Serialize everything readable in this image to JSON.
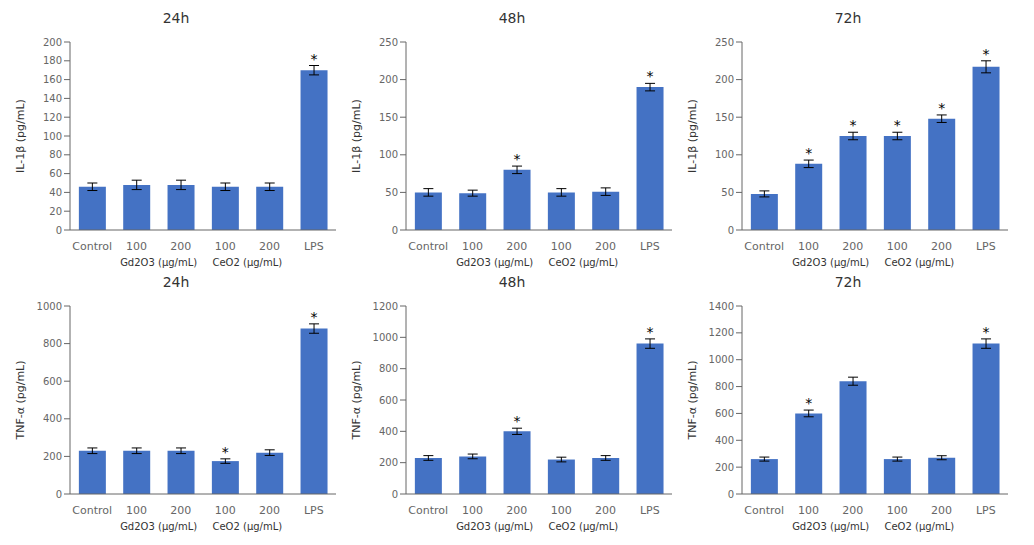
{
  "chart_data": [
    {
      "type": "bar",
      "title": "24h",
      "y_label": "IL-1β (pg/mL)",
      "categories": [
        "Control",
        "100",
        "200",
        "100",
        "200",
        "LPS"
      ],
      "values": [
        46,
        48,
        48,
        46,
        46,
        170
      ],
      "errors": [
        4,
        5,
        5,
        4,
        4,
        5
      ],
      "sig_labels": [
        null,
        null,
        null,
        null,
        null,
        "*"
      ],
      "category_groups": [
        {
          "label": "Gd2O3 (μg/mL)",
          "from": 1,
          "to": 2
        },
        {
          "label": "CeO2 (μg/mL)",
          "from": 3,
          "to": 4
        }
      ],
      "color": "#4472C4",
      "ylim": [
        0,
        200
      ],
      "yticks": [
        0,
        20,
        40,
        60,
        80,
        100,
        120,
        140,
        160,
        180,
        200
      ],
      "grid": false
    },
    {
      "type": "bar",
      "title": "48h",
      "y_label": "IL-1β (pg/mL)",
      "categories": [
        "Control",
        "100",
        "200",
        "100",
        "200",
        "LPS"
      ],
      "values": [
        50,
        49,
        80,
        50,
        51,
        190
      ],
      "errors": [
        5,
        4,
        5,
        5,
        5,
        5
      ],
      "sig_labels": [
        null,
        null,
        "*",
        null,
        null,
        "*"
      ],
      "category_groups": [
        {
          "label": "Gd2O3 (μg/mL)",
          "from": 1,
          "to": 2
        },
        {
          "label": "CeO2 (μg/mL)",
          "from": 3,
          "to": 4
        }
      ],
      "color": "#4472C4",
      "ylim": [
        0,
        250
      ],
      "yticks": [
        0,
        50,
        100,
        150,
        200,
        250
      ],
      "grid": false
    },
    {
      "type": "bar",
      "title": "72h",
      "y_label": "IL-1β (pg/mL)",
      "categories": [
        "Control",
        "100",
        "200",
        "100",
        "200",
        "LPS"
      ],
      "values": [
        48,
        88,
        125,
        125,
        148,
        217
      ],
      "errors": [
        4,
        5,
        5,
        5,
        5,
        8
      ],
      "sig_labels": [
        null,
        "*",
        "*",
        "*",
        "*",
        "*"
      ],
      "category_groups": [
        {
          "label": "Gd2O3 (μg/mL)",
          "from": 1,
          "to": 2
        },
        {
          "label": "CeO2 (μg/mL)",
          "from": 3,
          "to": 4
        }
      ],
      "color": "#4472C4",
      "ylim": [
        0,
        250
      ],
      "yticks": [
        0,
        50,
        100,
        150,
        200,
        250
      ],
      "grid": false
    },
    {
      "type": "bar",
      "title": "24h",
      "y_label": "TNF-α (pg/mL)",
      "categories": [
        "Control",
        "100",
        "200",
        "100",
        "200",
        "LPS"
      ],
      "values": [
        230,
        230,
        230,
        175,
        220,
        880
      ],
      "errors": [
        15,
        15,
        15,
        12,
        15,
        25
      ],
      "sig_labels": [
        null,
        null,
        null,
        "*",
        null,
        "*"
      ],
      "category_groups": [
        {
          "label": "Gd2O3 (μg/mL)",
          "from": 1,
          "to": 2
        },
        {
          "label": "CeO2 (μg/mL)",
          "from": 3,
          "to": 4
        }
      ],
      "color": "#4472C4",
      "ylim": [
        0,
        1000
      ],
      "yticks": [
        0,
        200,
        400,
        600,
        800,
        1000
      ],
      "grid": false
    },
    {
      "type": "bar",
      "title": "48h",
      "y_label": "TNF-α (pg/mL)",
      "categories": [
        "Control",
        "100",
        "200",
        "100",
        "200",
        "LPS"
      ],
      "values": [
        230,
        240,
        400,
        220,
        230,
        960
      ],
      "errors": [
        15,
        15,
        20,
        15,
        15,
        30
      ],
      "sig_labels": [
        null,
        null,
        "*",
        null,
        null,
        "*"
      ],
      "category_groups": [
        {
          "label": "Gd2O3 (μg/mL)",
          "from": 1,
          "to": 2
        },
        {
          "label": "CeO2 (μg/mL)",
          "from": 3,
          "to": 4
        }
      ],
      "color": "#4472C4",
      "ylim": [
        0,
        1200
      ],
      "yticks": [
        0,
        200,
        400,
        600,
        800,
        1000,
        1200
      ],
      "grid": false
    },
    {
      "type": "bar",
      "title": "72h",
      "y_label": "TNF-α (pg/mL)",
      "categories": [
        "Control",
        "100",
        "200",
        "100",
        "200",
        "LPS"
      ],
      "values": [
        260,
        600,
        840,
        260,
        270,
        1120
      ],
      "errors": [
        15,
        25,
        30,
        15,
        15,
        35
      ],
      "sig_labels": [
        null,
        "*",
        null,
        null,
        null,
        "*"
      ],
      "category_groups": [
        {
          "label": "Gd2O3 (μg/mL)",
          "from": 1,
          "to": 2
        },
        {
          "label": "CeO2 (μg/mL)",
          "from": 3,
          "to": 4
        }
      ],
      "color": "#4472C4",
      "ylim": [
        0,
        1400
      ],
      "yticks": [
        0,
        200,
        400,
        600,
        800,
        1000,
        1200,
        1400
      ],
      "grid": false
    }
  ]
}
